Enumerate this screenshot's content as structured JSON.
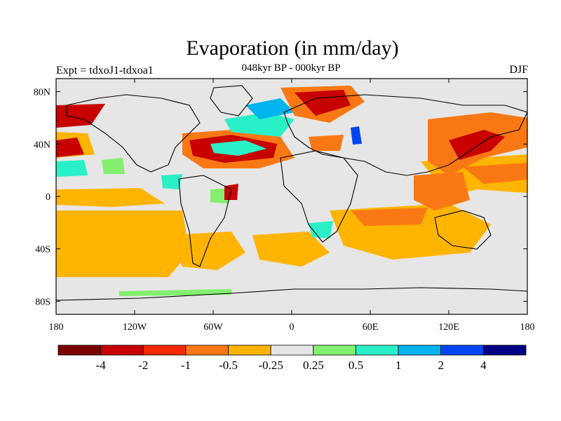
{
  "map": {
    "title": "Evaporation (in mm/day)",
    "subtitle": "048kyr BP - 000kyr BP",
    "experiment_label": "Expt = tdxoJ1-tdxoa1",
    "season_label": "DJF",
    "projection": "equirectangular",
    "lon_range": [
      -180,
      180
    ],
    "lat_range": [
      -90,
      90
    ],
    "lat_ticks": [
      {
        "value": 80,
        "label": "80N"
      },
      {
        "value": 40,
        "label": "40N"
      },
      {
        "value": 0,
        "label": "0"
      },
      {
        "value": -40,
        "label": "40S"
      },
      {
        "value": -80,
        "label": "80S"
      }
    ],
    "lon_ticks": [
      {
        "value": -180,
        "label": "180"
      },
      {
        "value": -120,
        "label": "120W"
      },
      {
        "value": -60,
        "label": "60W"
      },
      {
        "value": 0,
        "label": "0"
      },
      {
        "value": 60,
        "label": "60E"
      },
      {
        "value": 120,
        "label": "120E"
      },
      {
        "value": 180,
        "label": "180"
      }
    ],
    "background_color": "#e6e6e6",
    "colorbar": {
      "colors": [
        "#7a0000",
        "#c80000",
        "#f42a00",
        "#fa7814",
        "#ffb400",
        "#e6e6e6",
        "#82f06e",
        "#2af0c8",
        "#00b4f0",
        "#0046f0",
        "#000082"
      ],
      "labels": [
        "-4",
        "-2",
        "-1",
        "-0.5",
        "-0.25",
        "0.25",
        "0.5",
        "1",
        "2",
        "4"
      ]
    }
  }
}
